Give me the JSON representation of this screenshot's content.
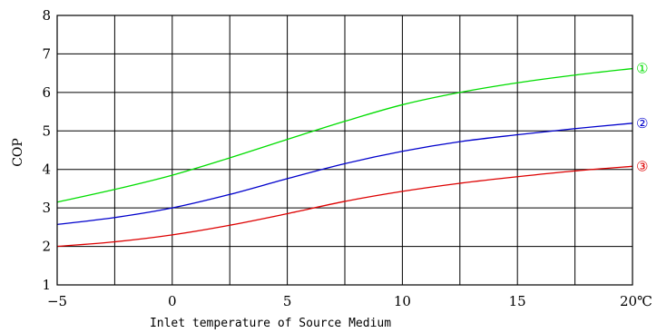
{
  "chart_data": {
    "type": "line",
    "xlabel": "Inlet temperature of Source Medium",
    "ylabel": "COP",
    "x_unit": "℃",
    "xlim": [
      -5,
      20
    ],
    "ylim": [
      1,
      8
    ],
    "x_ticks": [
      "−5",
      "0",
      "5",
      "10",
      "15",
      "20"
    ],
    "x_tick_values": [
      -5,
      0,
      5,
      10,
      15,
      20
    ],
    "y_ticks": [
      "1",
      "2",
      "3",
      "4",
      "5",
      "6",
      "7",
      "8"
    ],
    "y_tick_values": [
      1,
      2,
      3,
      4,
      5,
      6,
      7,
      8
    ],
    "grid": true,
    "x_grid_step": 2.5,
    "series": [
      {
        "name": "①",
        "color": "#00dd00",
        "x": [
          -5,
          -2.5,
          0,
          2.5,
          5,
          7.5,
          10,
          12.5,
          15,
          17.5,
          20
        ],
        "y": [
          3.15,
          3.48,
          3.85,
          4.3,
          4.78,
          5.25,
          5.68,
          6.0,
          6.25,
          6.45,
          6.62
        ]
      },
      {
        "name": "②",
        "color": "#0000cc",
        "x": [
          -5,
          -2.5,
          0,
          2.5,
          5,
          7.5,
          10,
          12.5,
          15,
          17.5,
          20
        ],
        "y": [
          2.57,
          2.75,
          3.0,
          3.35,
          3.76,
          4.15,
          4.47,
          4.72,
          4.9,
          5.06,
          5.2
        ]
      },
      {
        "name": "③",
        "color": "#dd0000",
        "x": [
          -5,
          -2.5,
          0,
          2.5,
          5,
          7.5,
          10,
          12.5,
          15,
          17.5,
          20
        ],
        "y": [
          2.0,
          2.12,
          2.3,
          2.55,
          2.85,
          3.17,
          3.43,
          3.64,
          3.81,
          3.96,
          4.08
        ]
      }
    ]
  }
}
